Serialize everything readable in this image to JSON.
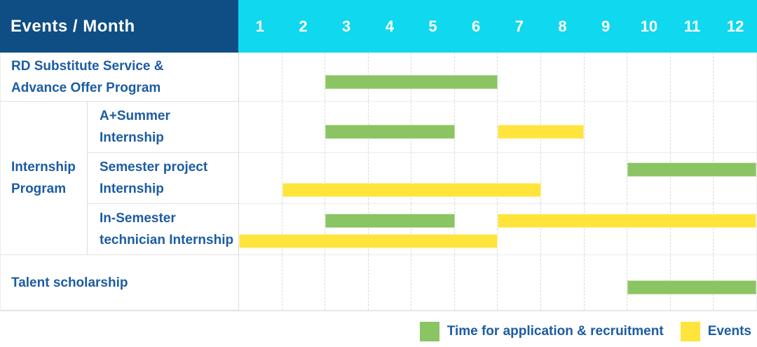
{
  "header": {
    "title": "Events / Month",
    "months": [
      "1",
      "2",
      "3",
      "4",
      "5",
      "6",
      "7",
      "8",
      "9",
      "10",
      "11",
      "12"
    ]
  },
  "group": {
    "name": "internship-program",
    "label_lines": [
      "Internship",
      "Program"
    ]
  },
  "rows": [
    {
      "name": "rd-substitute-service",
      "label_lines": [
        "RD Substitute Service &",
        "Advance Offer Program"
      ],
      "full_width_label": true,
      "bars": [
        {
          "series": "recruitment",
          "start": 3,
          "end": 6,
          "lane": "single"
        }
      ]
    },
    {
      "name": "a-plus-summer-internship",
      "label_lines": [
        "A+Summer",
        "Internship"
      ],
      "full_width_label": false,
      "bars": [
        {
          "series": "recruitment",
          "start": 3,
          "end": 5,
          "lane": "single"
        },
        {
          "series": "events",
          "start": 7,
          "end": 8,
          "lane": "single"
        }
      ]
    },
    {
      "name": "semester-project-internship",
      "label_lines": [
        "Semester project",
        "Internship"
      ],
      "full_width_label": false,
      "bars": [
        {
          "series": "recruitment",
          "start": 10,
          "end": 12,
          "lane": "top"
        },
        {
          "series": "events",
          "start": 2,
          "end": 7,
          "lane": "bottom"
        }
      ]
    },
    {
      "name": "in-semester-technician-internship",
      "label_lines": [
        "In-Semester",
        "technician Internship"
      ],
      "full_width_label": false,
      "bars": [
        {
          "series": "recruitment",
          "start": 3,
          "end": 5,
          "lane": "top"
        },
        {
          "series": "events",
          "start": 7,
          "end": 12,
          "lane": "top"
        },
        {
          "series": "events",
          "start": 1,
          "end": 6,
          "lane": "bottom"
        }
      ]
    },
    {
      "name": "talent-scholarship",
      "label_lines": [
        "Talent scholarship"
      ],
      "full_width_label": true,
      "bars": [
        {
          "series": "recruitment",
          "start": 10,
          "end": 12,
          "lane": "single"
        }
      ]
    }
  ],
  "legend": {
    "recruitment_label": "Time for application & recruitment",
    "events_label": "Events"
  },
  "colors": {
    "header_bg": "#0E4E85",
    "months_bg": "#10D8EE",
    "recruitment_green": "#8BC462",
    "events_yellow": "#FFE43C",
    "label_text_blue": "#1C5CA3"
  },
  "chart_data": {
    "type": "gantt",
    "title": "Events / Month",
    "x_axis": {
      "label": "Month",
      "ticks": [
        1,
        2,
        3,
        4,
        5,
        6,
        7,
        8,
        9,
        10,
        11,
        12
      ],
      "range": [
        1,
        12
      ]
    },
    "grid": true,
    "legend_position": "bottom-right",
    "series_legend": [
      {
        "name": "Time for application & recruitment",
        "color": "#8BC462"
      },
      {
        "name": "Events",
        "color": "#FFE43C"
      }
    ],
    "rows": [
      {
        "label": "RD Substitute Service & Advance Offer Program",
        "group": null,
        "bars": [
          {
            "series": "Time for application & recruitment",
            "start_month": 3,
            "end_month": 6
          }
        ]
      },
      {
        "label": "A+Summer Internship",
        "group": "Internship Program",
        "bars": [
          {
            "series": "Time for application & recruitment",
            "start_month": 3,
            "end_month": 5
          },
          {
            "series": "Events",
            "start_month": 7,
            "end_month": 8
          }
        ]
      },
      {
        "label": "Semester project Internship",
        "group": "Internship Program",
        "bars": [
          {
            "series": "Time for application & recruitment",
            "start_month": 10,
            "end_month": 12
          },
          {
            "series": "Events",
            "start_month": 2,
            "end_month": 7
          }
        ]
      },
      {
        "label": "In-Semester technician Internship",
        "group": "Internship Program",
        "bars": [
          {
            "series": "Time for application & recruitment",
            "start_month": 3,
            "end_month": 5
          },
          {
            "series": "Events",
            "start_month": 7,
            "end_month": 12
          },
          {
            "series": "Events",
            "start_month": 1,
            "end_month": 6
          }
        ]
      },
      {
        "label": "Talent scholarship",
        "group": null,
        "bars": [
          {
            "series": "Time for application & recruitment",
            "start_month": 10,
            "end_month": 12
          }
        ]
      }
    ]
  }
}
